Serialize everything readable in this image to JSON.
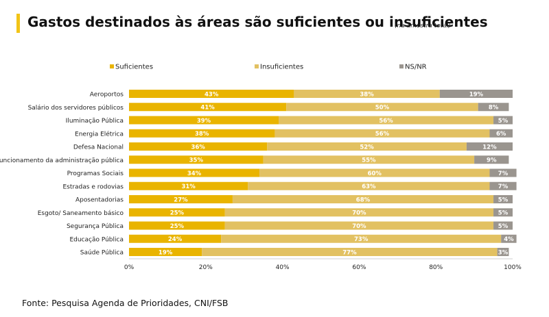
{
  "title": "Gastos destinados às áreas são suficientes ou insuficientes",
  "subtitle": "(na amostra total)",
  "source": "Fonte: Pesquisa Agenda de Prioridades, CNI/FSB",
  "colors": {
    "accent": "#f2c417",
    "suficientes": "#e9b400",
    "insuficientes": "#e2c162",
    "nsnr": "#9a958f"
  },
  "chart_data": {
    "type": "bar",
    "orientation": "horizontal",
    "stacked": true,
    "percent": true,
    "title": "Gastos destinados às áreas são suficientes ou insuficientes",
    "xlim": [
      0,
      100
    ],
    "xticks": [
      "0%",
      "20%",
      "40%",
      "60%",
      "80%",
      "100%"
    ],
    "legend_position": "top",
    "categories": [
      "Aeroportos",
      "Salário dos servidores públicos",
      "Iluminação Pública",
      "Energia Elétrica",
      "Defesa Nacional",
      "Funcionamento da administração pública",
      "Programas Sociais",
      "Estradas e rodovias",
      "Aposentadorias",
      "Esgoto/ Saneamento básico",
      "Segurança Pública",
      "Educação Pública",
      "Saúde Pública"
    ],
    "series": [
      {
        "name": "Suficientes",
        "color": "#e9b400",
        "values": [
          43,
          41,
          39,
          38,
          36,
          35,
          34,
          31,
          27,
          25,
          25,
          24,
          19
        ]
      },
      {
        "name": "Insuficientes",
        "color": "#e2c162",
        "values": [
          38,
          50,
          56,
          56,
          52,
          55,
          60,
          63,
          68,
          70,
          70,
          73,
          77
        ]
      },
      {
        "name": "NS/NR",
        "color": "#9a958f",
        "values": [
          19,
          8,
          5,
          6,
          12,
          9,
          7,
          7,
          5,
          5,
          5,
          4,
          3
        ]
      }
    ]
  }
}
